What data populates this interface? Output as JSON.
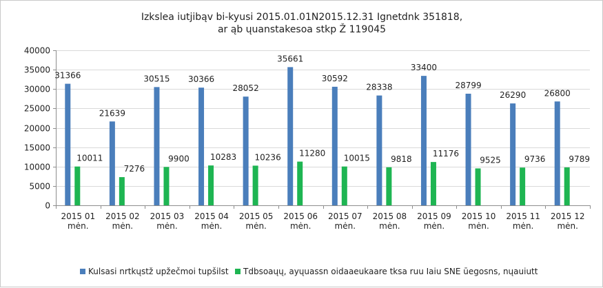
{
  "chart_data": {
    "type": "bar",
    "title_lines": [
      "Izkslea iutjibąv bi-kyusi 2015.01.01N2015.12.31  Ignetdnk  351818,",
      "ar ąb ųuanstakesoa stkp Ž 119045"
    ],
    "categories": [
      [
        "2015 01",
        "mėn."
      ],
      [
        "2015 02",
        "mėn."
      ],
      [
        "2015 03",
        "mėn."
      ],
      [
        "2015 04",
        "mėn."
      ],
      [
        "2015 05",
        "mėn."
      ],
      [
        "2015 06",
        "mėn."
      ],
      [
        "2015 07",
        "mėn."
      ],
      [
        "2015 08",
        "mėn."
      ],
      [
        "2015 09",
        "mėn."
      ],
      [
        "2015 10",
        "mėn."
      ],
      [
        "2015 11",
        "mėn."
      ],
      [
        "2015 12",
        "mėn."
      ]
    ],
    "series": [
      {
        "name": "Kulsasi nrtkųstž upžečmoi tupšilst",
        "color": "#4a7ebb",
        "values": [
          31366,
          21639,
          30515,
          30366,
          28052,
          35661,
          30592,
          28338,
          33400,
          28799,
          26290,
          26800
        ]
      },
      {
        "name": "Tdbsoaųų, ayųuassn oidaaeukaare tksa ruu Iaiu SNE ūegosns, nųauiutt",
        "color": "#1eb552",
        "values": [
          10011,
          7276,
          9900,
          10283,
          10236,
          11280,
          10015,
          9818,
          11176,
          9525,
          9736,
          9789
        ]
      }
    ],
    "ylim": [
      0,
      40000
    ],
    "yticks": [
      0,
      5000,
      10000,
      15000,
      20000,
      25000,
      30000,
      35000,
      40000
    ],
    "grid": true,
    "legend": "bottom"
  }
}
